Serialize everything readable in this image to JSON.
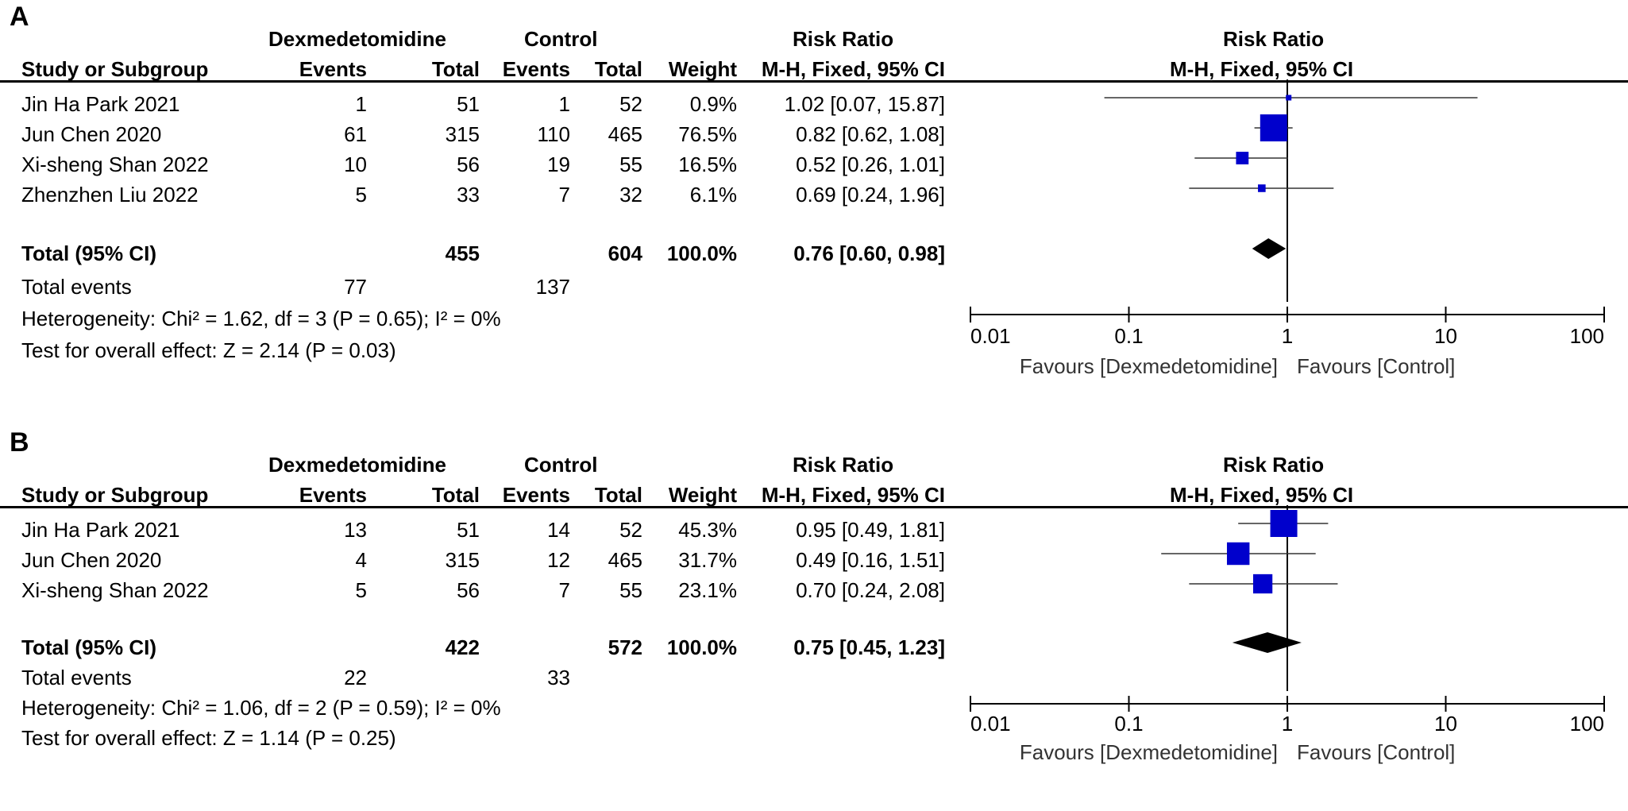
{
  "panels": [
    {
      "letter": "A",
      "header": {
        "dex": "Dexmedetomidine",
        "control": "Control",
        "rr": "Risk Ratio",
        "rr_plot": "Risk Ratio",
        "study": "Study or Subgroup",
        "events": "Events",
        "total": "Total",
        "events2": "Events",
        "total2": "Total",
        "weight": "Weight",
        "method": "M-H, Fixed, 95% CI",
        "method_plot": "M-H, Fixed, 95% CI"
      },
      "rows": [
        {
          "study": "Jin Ha Park 2021",
          "ev1": "1",
          "tot1": "51",
          "ev2": "1",
          "tot2": "52",
          "weight": "0.9%",
          "ci": "1.02 [0.07, 15.87]"
        },
        {
          "study": "Jun Chen 2020",
          "ev1": "61",
          "tot1": "315",
          "ev2": "110",
          "tot2": "465",
          "weight": "76.5%",
          "ci": "0.82 [0.62, 1.08]"
        },
        {
          "study": "Xi-sheng Shan 2022",
          "ev1": "10",
          "tot1": "56",
          "ev2": "19",
          "tot2": "55",
          "weight": "16.5%",
          "ci": "0.52 [0.26, 1.01]"
        },
        {
          "study": "Zhenzhen Liu 2022",
          "ev1": "5",
          "tot1": "33",
          "ev2": "7",
          "tot2": "32",
          "weight": "6.1%",
          "ci": "0.69 [0.24, 1.96]"
        }
      ],
      "total": {
        "label": "Total (95% CI)",
        "tot1": "455",
        "tot2": "604",
        "weight": "100.0%",
        "ci": "0.76 [0.60, 0.98]"
      },
      "total_events": {
        "label": "Total events",
        "ev1": "77",
        "ev2": "137"
      },
      "heterogeneity": "Heterogeneity: Chi² = 1.62, df = 3 (P = 0.65); I² = 0%",
      "overall": "Test for overall effect: Z = 2.14 (P = 0.03)",
      "axis": {
        "ticks": [
          "0.01",
          "0.1",
          "1",
          "10",
          "100"
        ],
        "fav_left": "Favours [Dexmedetomidine]",
        "fav_right": "Favours [Control]"
      }
    },
    {
      "letter": "B",
      "header": {
        "dex": "Dexmedetomidine",
        "control": "Control",
        "rr": "Risk Ratio",
        "rr_plot": "Risk Ratio",
        "study": "Study or Subgroup",
        "events": "Events",
        "total": "Total",
        "events2": "Events",
        "total2": "Total",
        "weight": "Weight",
        "method": "M-H, Fixed, 95% CI",
        "method_plot": "M-H, Fixed, 95% CI"
      },
      "rows": [
        {
          "study": "Jin Ha Park 2021",
          "ev1": "13",
          "tot1": "51",
          "ev2": "14",
          "tot2": "52",
          "weight": "45.3%",
          "ci": "0.95 [0.49, 1.81]"
        },
        {
          "study": "Jun Chen 2020",
          "ev1": "4",
          "tot1": "315",
          "ev2": "12",
          "tot2": "465",
          "weight": "31.7%",
          "ci": "0.49 [0.16, 1.51]"
        },
        {
          "study": "Xi-sheng Shan 2022",
          "ev1": "5",
          "tot1": "56",
          "ev2": "7",
          "tot2": "55",
          "weight": "23.1%",
          "ci": "0.70 [0.24, 2.08]"
        }
      ],
      "total": {
        "label": "Total (95% CI)",
        "tot1": "422",
        "tot2": "572",
        "weight": "100.0%",
        "ci": "0.75 [0.45, 1.23]"
      },
      "total_events": {
        "label": "Total events",
        "ev1": "22",
        "ev2": "33"
      },
      "heterogeneity": "Heterogeneity: Chi² = 1.06, df = 2 (P = 0.59); I² = 0%",
      "overall": "Test for overall effect: Z = 1.14 (P = 0.25)",
      "axis": {
        "ticks": [
          "0.01",
          "0.1",
          "1",
          "10",
          "100"
        ],
        "fav_left": "Favours [Dexmedetomidine]",
        "fav_right": "Favours [Control]"
      }
    }
  ],
  "chart_data": [
    {
      "type": "forest",
      "title": "Risk Ratio M-H, Fixed, 95% CI",
      "x_scale": "log",
      "xlim": [
        0.01,
        100
      ],
      "null_line": 1,
      "marker_color": "#0000cc",
      "studies": [
        {
          "name": "Jin Ha Park 2021",
          "rr": 1.02,
          "lo": 0.07,
          "hi": 15.87,
          "weight": 0.9
        },
        {
          "name": "Jun Chen 2020",
          "rr": 0.82,
          "lo": 0.62,
          "hi": 1.08,
          "weight": 76.5
        },
        {
          "name": "Xi-sheng Shan 2022",
          "rr": 0.52,
          "lo": 0.26,
          "hi": 1.01,
          "weight": 16.5
        },
        {
          "name": "Zhenzhen Liu 2022",
          "rr": 0.69,
          "lo": 0.24,
          "hi": 1.96,
          "weight": 6.1
        }
      ],
      "pooled": {
        "rr": 0.76,
        "lo": 0.6,
        "hi": 0.98
      }
    },
    {
      "type": "forest",
      "title": "Risk Ratio M-H, Fixed, 95% CI",
      "x_scale": "log",
      "xlim": [
        0.01,
        100
      ],
      "null_line": 1,
      "marker_color": "#0000cc",
      "studies": [
        {
          "name": "Jin Ha Park 2021",
          "rr": 0.95,
          "lo": 0.49,
          "hi": 1.81,
          "weight": 45.3
        },
        {
          "name": "Jun Chen 2020",
          "rr": 0.49,
          "lo": 0.16,
          "hi": 1.51,
          "weight": 31.7
        },
        {
          "name": "Xi-sheng Shan 2022",
          "rr": 0.7,
          "lo": 0.24,
          "hi": 2.08,
          "weight": 23.1
        }
      ],
      "pooled": {
        "rr": 0.75,
        "lo": 0.45,
        "hi": 1.23
      }
    }
  ]
}
